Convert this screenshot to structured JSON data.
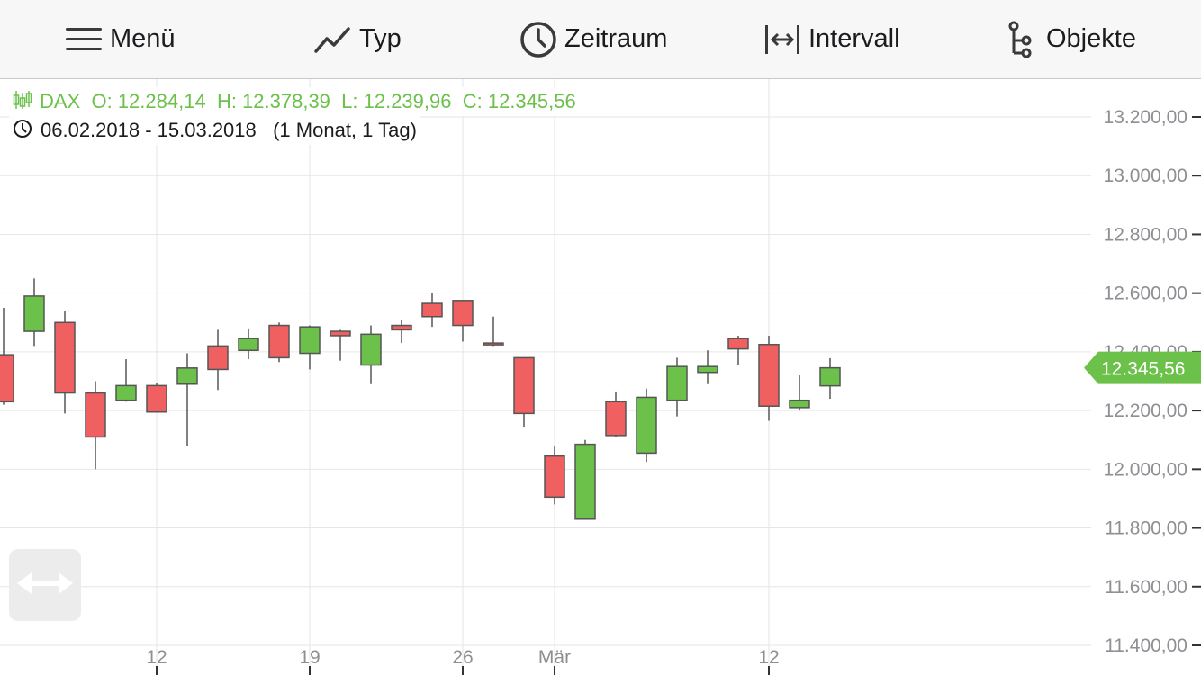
{
  "toolbar": {
    "menu_label": "Menü",
    "type_label": "Typ",
    "period_label": "Zeitraum",
    "interval_label": "Intervall",
    "objects_label": "Objekte"
  },
  "info": {
    "symbol": "DAX",
    "open": "O: 12.284,14",
    "high": "H: 12.378,39",
    "low": "L: 12.239,96",
    "close": "C: 12.345,56",
    "date_range": "06.02.2018 - 15.03.2018",
    "period_interval": "(1 Monat, 1 Tag)"
  },
  "colors": {
    "up": "#6cc14a",
    "down": "#f06060",
    "wick": "#555555",
    "grid": "#e6e6e6",
    "price_tag": "#6cc14a",
    "axis_text": "#8e8e93"
  },
  "icons": {
    "menu": "hamburger-icon",
    "type": "line-chart-icon",
    "period": "clock-icon",
    "interval": "arrows-horizontal-icon",
    "objects": "tree-icon",
    "pan": "pan-arrows-icon"
  },
  "chart_data": {
    "type": "candlestick",
    "title": "",
    "xlabel": "",
    "ylabel": "",
    "ylim": [
      11400,
      13200
    ],
    "yticks": [
      {
        "value": 13200,
        "label": "13.200,00"
      },
      {
        "value": 13000,
        "label": "13.000,00"
      },
      {
        "value": 12800,
        "label": "12.800,00"
      },
      {
        "value": 12600,
        "label": "12.600,00"
      },
      {
        "value": 12400,
        "label": "12.400,00"
      },
      {
        "value": 12200,
        "label": "12.200,00"
      },
      {
        "value": 12000,
        "label": "12.000,00"
      },
      {
        "value": 11800,
        "label": "11.800,00"
      },
      {
        "value": 11600,
        "label": "11.600,00"
      },
      {
        "value": 11400,
        "label": "11.400,00"
      }
    ],
    "xticks": [
      {
        "date": "2018-02-12",
        "label": "12"
      },
      {
        "date": "2018-02-19",
        "label": "19"
      },
      {
        "date": "2018-02-26",
        "label": "26"
      },
      {
        "date": "2018-03-01",
        "label": "Mär"
      },
      {
        "date": "2018-03-12",
        "label": "12"
      }
    ],
    "grid": true,
    "last_price": {
      "value": 12345.56,
      "label": "12.345,56"
    },
    "candles": [
      {
        "date": "2018-02-05",
        "open": 12390,
        "high": 12550,
        "low": 12220,
        "close": 12230
      },
      {
        "date": "2018-02-06",
        "open": 12470,
        "high": 12650,
        "low": 12420,
        "close": 12590
      },
      {
        "date": "2018-02-07",
        "open": 12500,
        "high": 12540,
        "low": 12190,
        "close": 12260
      },
      {
        "date": "2018-02-08",
        "open": 12260,
        "high": 12300,
        "low": 12000,
        "close": 12110
      },
      {
        "date": "2018-02-09",
        "open": 12235,
        "high": 12375,
        "low": 12230,
        "close": 12285
      },
      {
        "date": "2018-02-12",
        "open": 12285,
        "high": 12295,
        "low": 12195,
        "close": 12195
      },
      {
        "date": "2018-02-13",
        "open": 12290,
        "high": 12395,
        "low": 12080,
        "close": 12345
      },
      {
        "date": "2018-02-14",
        "open": 12420,
        "high": 12475,
        "low": 12270,
        "close": 12340
      },
      {
        "date": "2018-02-15",
        "open": 12405,
        "high": 12480,
        "low": 12375,
        "close": 12445
      },
      {
        "date": "2018-02-16",
        "open": 12490,
        "high": 12500,
        "low": 12365,
        "close": 12380
      },
      {
        "date": "2018-02-19",
        "open": 12395,
        "high": 12490,
        "low": 12340,
        "close": 12485
      },
      {
        "date": "2018-02-20",
        "open": 12470,
        "high": 12475,
        "low": 12370,
        "close": 12455
      },
      {
        "date": "2018-02-21",
        "open": 12355,
        "high": 12490,
        "low": 12290,
        "close": 12460
      },
      {
        "date": "2018-02-22",
        "open": 12490,
        "high": 12510,
        "low": 12430,
        "close": 12475
      },
      {
        "date": "2018-02-23",
        "open": 12565,
        "high": 12600,
        "low": 12485,
        "close": 12520
      },
      {
        "date": "2018-02-26",
        "open": 12575,
        "high": 12575,
        "low": 12435,
        "close": 12490
      },
      {
        "date": "2018-02-27",
        "open": 12430,
        "high": 12520,
        "low": 12420,
        "close": 12425
      },
      {
        "date": "2018-02-28",
        "open": 12380,
        "high": 12380,
        "low": 12145,
        "close": 12190
      },
      {
        "date": "2018-03-01",
        "open": 12045,
        "high": 12080,
        "low": 11880,
        "close": 11905
      },
      {
        "date": "2018-03-02",
        "open": 11830,
        "high": 12100,
        "low": 11830,
        "close": 12085
      },
      {
        "date": "2018-03-05",
        "open": 12230,
        "high": 12265,
        "low": 12110,
        "close": 12115
      },
      {
        "date": "2018-03-06",
        "open": 12055,
        "high": 12275,
        "low": 12025,
        "close": 12245
      },
      {
        "date": "2018-03-07",
        "open": 12235,
        "high": 12380,
        "low": 12180,
        "close": 12350
      },
      {
        "date": "2018-03-08",
        "open": 12330,
        "high": 12405,
        "low": 12290,
        "close": 12350
      },
      {
        "date": "2018-03-09",
        "open": 12445,
        "high": 12455,
        "low": 12355,
        "close": 12410
      },
      {
        "date": "2018-03-12",
        "open": 12425,
        "high": 12455,
        "low": 12165,
        "close": 12215
      },
      {
        "date": "2018-03-13",
        "open": 12210,
        "high": 12320,
        "low": 12200,
        "close": 12235
      },
      {
        "date": "2018-03-14",
        "open": 12284.14,
        "high": 12378.39,
        "low": 12239.96,
        "close": 12345.56
      }
    ]
  }
}
